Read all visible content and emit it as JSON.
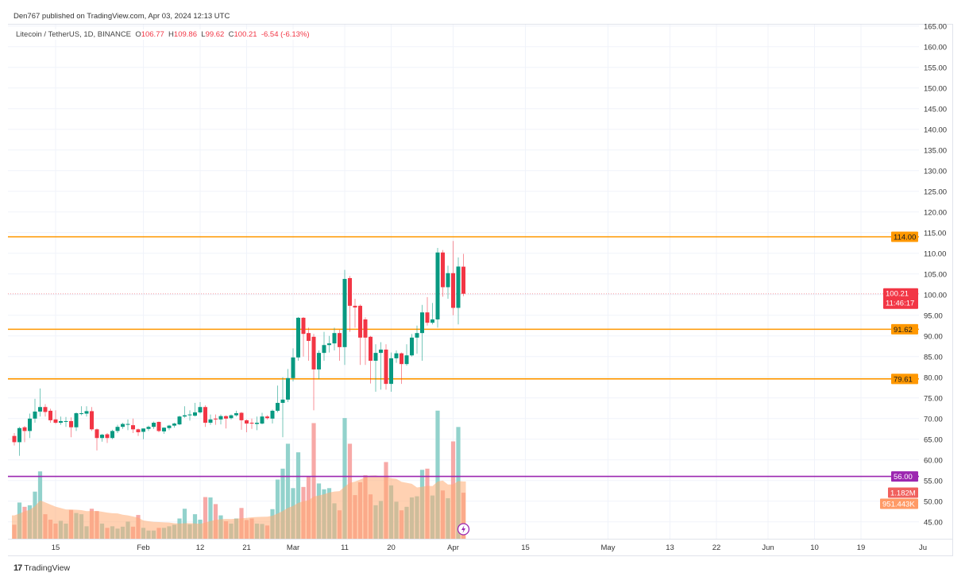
{
  "header": {
    "published": "Den767 published on TradingView.com, Apr 03, 2024 12:13 UTC"
  },
  "legend": {
    "symbol": "Litecoin / TetherUS, 1D, BINANCE",
    "o_label": "O",
    "o": "106.77",
    "h_label": "H",
    "h": "109.86",
    "l_label": "L",
    "l": "99.62",
    "c_label": "C",
    "c": "100.21",
    "change": "-6.54 (-6.13%)"
  },
  "footer": {
    "brand": "TradingView",
    "logo_icon": "tradingview-logo-icon"
  },
  "colors": {
    "up": "#089981",
    "down": "#f23645",
    "level": "#ff9800",
    "support": "#9c27b0",
    "vol_up": "#92d2cc",
    "vol_down": "#f7a9a7",
    "vol_ma": "#ffab73"
  },
  "chart_data": {
    "type": "candlestick",
    "ylim": [
      43.3,
      166
    ],
    "y_ticks": [
      45,
      50,
      55,
      60,
      65,
      70,
      75,
      80,
      85,
      90,
      95,
      100,
      105,
      110,
      115,
      120,
      125,
      130,
      135,
      140,
      145,
      150,
      155,
      160,
      165
    ],
    "grid": true,
    "x_ticks": [
      {
        "date": "2024-01-15",
        "label": "15"
      },
      {
        "date": "2024-02-01",
        "label": "Feb"
      },
      {
        "date": "2024-02-12",
        "label": "12"
      },
      {
        "date": "2024-02-21",
        "label": "21"
      },
      {
        "date": "2024-03-01",
        "label": "Mar"
      },
      {
        "date": "2024-03-11",
        "label": "11"
      },
      {
        "date": "2024-03-20",
        "label": "20"
      },
      {
        "date": "2024-04-01",
        "label": "Apr"
      },
      {
        "date": "2024-04-15",
        "label": "15"
      },
      {
        "date": "2024-05-01",
        "label": "May"
      },
      {
        "date": "2024-05-13",
        "label": "13"
      },
      {
        "date": "2024-05-22",
        "label": "22"
      },
      {
        "date": "2024-06-01",
        "label": "Jun"
      },
      {
        "date": "2024-06-10",
        "label": "10"
      },
      {
        "date": "2024-06-19",
        "label": "19"
      },
      {
        "date": "2024-07-01",
        "label": "Ju"
      }
    ],
    "levels": [
      {
        "price": 114.0,
        "label": "114.00",
        "color": "#ff9800"
      },
      {
        "price": 91.62,
        "label": "91.62",
        "color": "#ff9800"
      },
      {
        "price": 79.61,
        "label": "79.61",
        "color": "#ff9800"
      },
      {
        "price": 56.0,
        "label": "56.00",
        "color": "#9c27b0"
      }
    ],
    "last_price": {
      "price": 100.21,
      "label": "100.21",
      "countdown": "11:46:17"
    },
    "volume_labels": {
      "volume": "1.182M",
      "volume_ma": "951.443K"
    },
    "columns": [
      "date",
      "open",
      "high",
      "low",
      "close",
      "volume_millions"
    ],
    "candles": [
      [
        "2024-01-07",
        65.8,
        66.5,
        63.5,
        64.3,
        0.36
      ],
      [
        "2024-01-08",
        64.3,
        68,
        61,
        67.7,
        0.93
      ],
      [
        "2024-01-09",
        67.9,
        68.2,
        64.3,
        67.0,
        0.82
      ],
      [
        "2024-01-10",
        67,
        71.2,
        65.3,
        70,
        0.86
      ],
      [
        "2024-01-11",
        70,
        74.8,
        69,
        71.7,
        1.21
      ],
      [
        "2024-01-12",
        71.7,
        77.3,
        70.5,
        72.8,
        1.73
      ],
      [
        "2024-01-13",
        72.8,
        73.5,
        70.5,
        71.6,
        0.63
      ],
      [
        "2024-01-14",
        71.9,
        72.4,
        69,
        69.6,
        0.49
      ],
      [
        "2024-01-15",
        69.8,
        72,
        68.7,
        69.0,
        0.39
      ],
      [
        "2024-01-16",
        69.0,
        70.5,
        68.5,
        69.4,
        0.46
      ],
      [
        "2024-01-17",
        69.2,
        70.4,
        68,
        69.4,
        0.39
      ],
      [
        "2024-01-18",
        69.4,
        70.3,
        65.5,
        67.9,
        0.74
      ],
      [
        "2024-01-19",
        67.9,
        71.5,
        67,
        71.3,
        0.66
      ],
      [
        "2024-01-20",
        71.1,
        73,
        70.8,
        71.3,
        0.63
      ],
      [
        "2024-01-21",
        71.2,
        73,
        70.5,
        71.8,
        0.32
      ],
      [
        "2024-01-22",
        71.8,
        72.8,
        67,
        67.4,
        0.77
      ],
      [
        "2024-01-23",
        67.4,
        67.6,
        62.3,
        65.3,
        0.71
      ],
      [
        "2024-01-24",
        65.3,
        66.3,
        64.4,
        66.1,
        0.39
      ],
      [
        "2024-01-25",
        66.2,
        66.5,
        64.1,
        65.3,
        0.28
      ],
      [
        "2024-01-26",
        65.3,
        67.3,
        65,
        67,
        0.32
      ],
      [
        "2024-01-27",
        67,
        68.5,
        66.5,
        68,
        0.26
      ],
      [
        "2024-01-28",
        68,
        69,
        67.5,
        68.7,
        0.31
      ],
      [
        "2024-01-29",
        68.5,
        69.8,
        67.2,
        68.7,
        0.44
      ],
      [
        "2024-01-30",
        68.4,
        70,
        66.5,
        67.4,
        0.31
      ],
      [
        "2024-01-31",
        67.4,
        67.6,
        65.8,
        66.7,
        0.61
      ],
      [
        "2024-02-01",
        66.8,
        67.6,
        65,
        67.6,
        0.28
      ],
      [
        "2024-02-02",
        67.5,
        68.3,
        67,
        68,
        0.21
      ],
      [
        "2024-02-03",
        68,
        69.3,
        67.5,
        69,
        0.21
      ],
      [
        "2024-02-04",
        69.2,
        69.3,
        66.7,
        67.0,
        0.28
      ],
      [
        "2024-02-05",
        66.9,
        67.9,
        66.3,
        67.8,
        0.28
      ],
      [
        "2024-02-06",
        67.7,
        68.5,
        67.2,
        68.3,
        0.32
      ],
      [
        "2024-02-07",
        68.3,
        69,
        67.8,
        68.8,
        0.36
      ],
      [
        "2024-02-08",
        68.6,
        70.7,
        68.4,
        70.5,
        0.52
      ],
      [
        "2024-02-09",
        70.5,
        73,
        70.2,
        70.8,
        0.77
      ],
      [
        "2024-02-10",
        70.8,
        72,
        69.5,
        71,
        0.37
      ],
      [
        "2024-02-11",
        70.7,
        73.8,
        70.5,
        71.5,
        0.63
      ],
      [
        "2024-02-12",
        71.5,
        74,
        71.2,
        72.8,
        0.49
      ],
      [
        "2024-02-13",
        72.8,
        73.2,
        68,
        69,
        1.07
      ],
      [
        "2024-02-14",
        69,
        71,
        68.5,
        69.8,
        1.06
      ],
      [
        "2024-02-15",
        70,
        71,
        68.5,
        69.8,
        0.89
      ],
      [
        "2024-02-16",
        69.8,
        71,
        68.6,
        70.6,
        0.6
      ],
      [
        "2024-02-17",
        70.6,
        70.8,
        67.6,
        70.0,
        0.45
      ],
      [
        "2024-02-18",
        70.1,
        71,
        69.8,
        70.8,
        0.39
      ],
      [
        "2024-02-19",
        70.8,
        71.9,
        70.5,
        71.3,
        0.52
      ],
      [
        "2024-02-20",
        71.4,
        71.6,
        67.3,
        69.6,
        0.79
      ],
      [
        "2024-02-21",
        69.6,
        69.8,
        66.7,
        68.8,
        0.48
      ],
      [
        "2024-02-22",
        69,
        70,
        67.5,
        68.8,
        0.52
      ],
      [
        "2024-02-23",
        68.7,
        70.5,
        67.2,
        69,
        0.39
      ],
      [
        "2024-02-24",
        68.8,
        71.4,
        68.6,
        70.5,
        0.38
      ],
      [
        "2024-02-25",
        70.5,
        70.8,
        69.8,
        70.1,
        0.34
      ],
      [
        "2024-02-26",
        70.0,
        72.2,
        68.8,
        71.9,
        0.76
      ],
      [
        "2024-02-27",
        71.9,
        78,
        71.5,
        73.8,
        1.52
      ],
      [
        "2024-02-28",
        73.8,
        80,
        65.5,
        74.6,
        1.8
      ],
      [
        "2024-02-29",
        74.6,
        82,
        74,
        79.8,
        2.44
      ],
      [
        "2024-03-01",
        79.8,
        87,
        79,
        84.8,
        1.3
      ],
      [
        "2024-03-02",
        84.8,
        94.6,
        84,
        94.4,
        2.22
      ],
      [
        "2024-03-03",
        94.4,
        94.6,
        85,
        90.5,
        1.33
      ],
      [
        "2024-03-04",
        90.7,
        92,
        84,
        88.8,
        1.59
      ],
      [
        "2024-03-05",
        89.8,
        90.5,
        72,
        81.9,
        2.97
      ],
      [
        "2024-03-06",
        81.9,
        86.5,
        79.6,
        85.9,
        1.42
      ],
      [
        "2024-03-07",
        85.9,
        91,
        84,
        87.8,
        1.27
      ],
      [
        "2024-03-08",
        87.8,
        90,
        86,
        88.2,
        1.3
      ],
      [
        "2024-03-09",
        88.2,
        92,
        86.5,
        90.7,
        0.91
      ],
      [
        "2024-03-10",
        90.7,
        91.5,
        84,
        87.3,
        0.73
      ],
      [
        "2024-03-11",
        87.3,
        106,
        83,
        103.8,
        3.1
      ],
      [
        "2024-03-12",
        104,
        104.5,
        91,
        97.3,
        2.44
      ],
      [
        "2024-03-13",
        97.3,
        99,
        92,
        96.9,
        1.12
      ],
      [
        "2024-03-14",
        97.3,
        97.6,
        83,
        89.6,
        1.45
      ],
      [
        "2024-03-15",
        94,
        94.5,
        83,
        89.6,
        1.63
      ],
      [
        "2024-03-16",
        89.8,
        90,
        78.5,
        84,
        1.14
      ],
      [
        "2024-03-17",
        84,
        88,
        76.5,
        85.9,
        0.86
      ],
      [
        "2024-03-18",
        85.9,
        88.5,
        77,
        86.7,
        0.97
      ],
      [
        "2024-03-19",
        86.7,
        88,
        77,
        78.4,
        1.97
      ],
      [
        "2024-03-20",
        78.4,
        86,
        76.5,
        84.6,
        1.37
      ],
      [
        "2024-03-21",
        84.6,
        86.5,
        83.5,
        85.8,
        0.95
      ],
      [
        "2024-03-22",
        85.8,
        86,
        78.4,
        83.2,
        0.73
      ],
      [
        "2024-03-23",
        83.2,
        88,
        82.8,
        85.3,
        0.82
      ],
      [
        "2024-03-24",
        85.3,
        90.5,
        85,
        89.6,
        1.06
      ],
      [
        "2024-03-25",
        89.6,
        92.5,
        85.7,
        90.7,
        1.09
      ],
      [
        "2024-03-26",
        90.7,
        97.5,
        84,
        95.7,
        1.77
      ],
      [
        "2024-03-27",
        95.7,
        99.4,
        92.5,
        93.2,
        1.8
      ],
      [
        "2024-03-28",
        93.2,
        98,
        92.8,
        94,
        1.11
      ],
      [
        "2024-03-29",
        94,
        111.3,
        92,
        110.2,
        3.29
      ],
      [
        "2024-03-30",
        110.2,
        110.8,
        99.5,
        101.8,
        1.24
      ],
      [
        "2024-03-31",
        101.8,
        107,
        99,
        105.2,
        1.04
      ],
      [
        "2024-04-01",
        105.2,
        113,
        95,
        96.8,
        2.5
      ],
      [
        "2024-04-02",
        96.8,
        109,
        92.8,
        106.8,
        2.87
      ],
      [
        "2024-04-03",
        106.77,
        109.86,
        99.62,
        100.21,
        1.182
      ]
    ],
    "events_icon": "lightning-icon"
  }
}
